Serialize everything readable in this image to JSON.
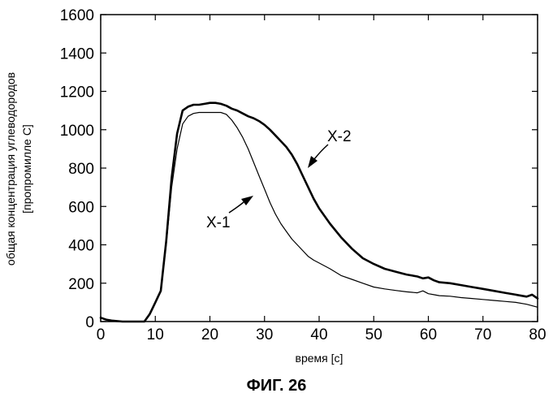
{
  "chart_data": {
    "type": "line",
    "title": "",
    "xlabel": "время [с]",
    "ylabel_lines": [
      "общая концентрация углеводородов",
      "[пропромилле С]"
    ],
    "xlim": [
      0,
      80
    ],
    "ylim": [
      0,
      1600
    ],
    "xticks": [
      0,
      10,
      20,
      30,
      40,
      50,
      60,
      70,
      80
    ],
    "yticks": [
      0,
      200,
      400,
      600,
      800,
      1000,
      1200,
      1400,
      1600
    ],
    "grid": false,
    "series": [
      {
        "name": "X-1",
        "x": [
          0,
          1,
          2,
          4,
          6,
          8,
          9,
          10,
          11,
          12,
          13,
          14,
          15,
          16,
          17,
          18,
          19,
          20,
          21,
          22,
          23,
          24,
          25,
          26,
          27,
          28,
          29,
          30,
          31,
          32,
          33,
          34,
          35,
          36,
          37,
          38,
          39,
          40,
          42,
          44,
          46,
          48,
          50,
          52,
          54,
          56,
          58,
          59,
          60,
          61,
          62,
          64,
          66,
          68,
          70,
          72,
          74,
          76,
          78,
          80
        ],
        "y": [
          20,
          10,
          5,
          0,
          0,
          0,
          40,
          100,
          160,
          400,
          700,
          900,
          1030,
          1070,
          1085,
          1090,
          1090,
          1090,
          1090,
          1090,
          1080,
          1050,
          1010,
          960,
          900,
          830,
          760,
          690,
          620,
          560,
          510,
          470,
          430,
          400,
          370,
          340,
          320,
          305,
          275,
          240,
          220,
          200,
          180,
          170,
          162,
          155,
          150,
          160,
          145,
          140,
          135,
          132,
          125,
          120,
          115,
          110,
          105,
          100,
          90,
          75
        ]
      },
      {
        "name": "X-2",
        "x": [
          0,
          1,
          2,
          4,
          6,
          8,
          9,
          10,
          11,
          12,
          13,
          14,
          15,
          16,
          17,
          18,
          19,
          20,
          21,
          22,
          23,
          24,
          25,
          26,
          27,
          28,
          29,
          30,
          31,
          32,
          33,
          34,
          35,
          36,
          37,
          38,
          39,
          40,
          42,
          44,
          46,
          48,
          50,
          52,
          54,
          56,
          58,
          59,
          60,
          61,
          62,
          64,
          66,
          68,
          70,
          72,
          74,
          76,
          78,
          79,
          80
        ],
        "y": [
          20,
          10,
          5,
          0,
          0,
          0,
          40,
          100,
          160,
          420,
          750,
          980,
          1100,
          1120,
          1130,
          1130,
          1135,
          1140,
          1140,
          1135,
          1125,
          1110,
          1100,
          1085,
          1070,
          1060,
          1045,
          1025,
          1000,
          970,
          940,
          910,
          870,
          820,
          760,
          700,
          640,
          590,
          510,
          440,
          380,
          330,
          300,
          275,
          260,
          245,
          235,
          225,
          230,
          215,
          205,
          200,
          190,
          180,
          170,
          160,
          150,
          140,
          130,
          140,
          120
        ]
      }
    ],
    "annotations": [
      {
        "text": "X-1",
        "series": "X-1"
      },
      {
        "text": "X-2",
        "series": "X-2"
      }
    ]
  },
  "figure_caption": "ФИГ. 26"
}
